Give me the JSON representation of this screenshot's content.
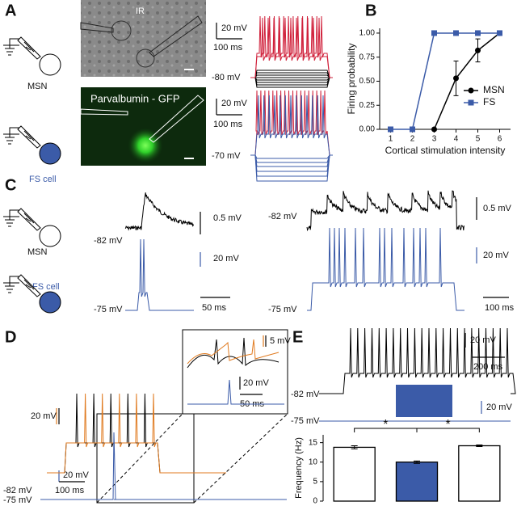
{
  "labels": {
    "a": "A",
    "b": "B",
    "c": "C",
    "d": "D",
    "e": "E"
  },
  "panel_a": {
    "msn": "MSN",
    "fs": "FS cell",
    "ir": "IR",
    "gfp": "Parvalbumin - GFP",
    "msn_v": "20 mV",
    "msn_t": "100 ms",
    "msn_rest": "-80 mV",
    "fs_v": "20 mV",
    "fs_t": "100 ms",
    "fs_rest": "-70 mV"
  },
  "panel_c": {
    "msn": "MSN",
    "fs": "FS cell",
    "msn_rest_1": "-82 mV",
    "msn_v_1": "0.5 mV",
    "fs_rest_1": "-75 mV",
    "fs_v_1": "20 mV",
    "t_1": "50 ms",
    "msn_rest_2": "-82 mV",
    "msn_v_2": "0.5 mV",
    "fs_rest_2": "-75 mV",
    "fs_v_2": "20 mV",
    "t_2": "100 ms"
  },
  "panel_d": {
    "v": "20 mV",
    "msn_rest": "-82 mV",
    "fs_v": "20 mV",
    "t": "100 ms",
    "fs_rest": "-75 mV",
    "inset_v1": "5 mV",
    "inset_v2": "20 mV",
    "inset_t": "50 ms"
  },
  "panel_e": {
    "v": "20 mV",
    "t": "200 ms",
    "msn_rest": "-82 mV",
    "fs_v": "20 mV",
    "fs_rest": "-75 mV"
  },
  "chart_data": [
    {
      "type": "line",
      "xlabel": "Cortical stimulation intensity",
      "ylabel": "Firing probability",
      "x": [
        1,
        2,
        3,
        4,
        5,
        6
      ],
      "xlim": [
        0.5,
        6.5
      ],
      "xticks": [
        1,
        2,
        3,
        4,
        5,
        6
      ],
      "ylim": [
        0,
        1.05
      ],
      "yticks": [
        {
          "value": 0,
          "label": "0.00"
        },
        {
          "value": 0.25,
          "label": "0.25"
        },
        {
          "value": 0.5,
          "label": "0.50"
        },
        {
          "value": 0.75,
          "label": "0.75"
        },
        {
          "value": 1,
          "label": "1.00"
        }
      ],
      "legend": "lower right",
      "series": [
        {
          "name": "MSN",
          "color": "#000000",
          "marker": "circle",
          "values": [
            null,
            null,
            0,
            0.53,
            0.82,
            1.0
          ],
          "errors": [
            null,
            null,
            0,
            0.18,
            0.12,
            0
          ]
        },
        {
          "name": "FS",
          "color": "#3b5ba8",
          "marker": "square",
          "values": [
            0,
            0,
            1,
            1,
            1,
            1
          ]
        }
      ]
    },
    {
      "type": "bar",
      "ylabel": "Frequency (Hz)",
      "categories": [
        null,
        null,
        null
      ],
      "values": [
        13.8,
        10.0,
        14.2
      ],
      "errors": [
        0.4,
        0.3,
        0.2
      ],
      "colors": [
        "#ffffff",
        "#3b5ba8",
        "#ffffff"
      ],
      "ylim": [
        0,
        17
      ],
      "yticks": [
        0,
        5,
        10,
        15
      ],
      "annotations": [
        "*",
        "*"
      ]
    }
  ]
}
